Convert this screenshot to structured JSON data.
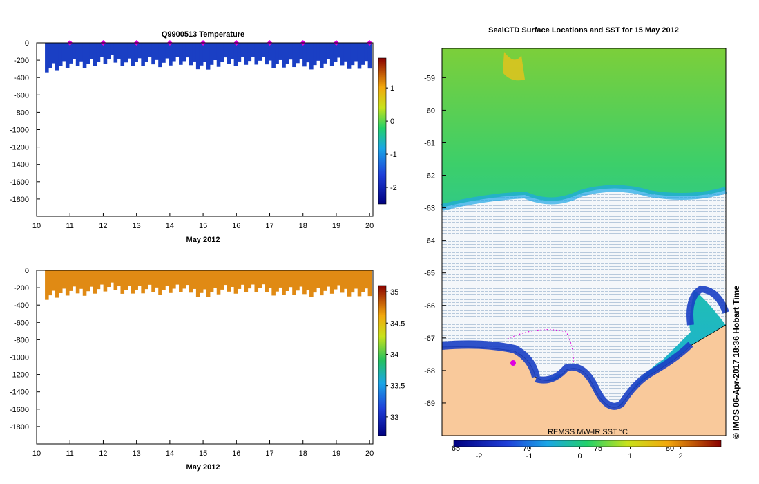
{
  "chart_data": [
    {
      "type": "heatmap",
      "title": "Q9900513  Temperature",
      "xlabel": "May 2012",
      "ylabel": "",
      "x_ticks": [
        "10",
        "11",
        "12",
        "13",
        "14",
        "15",
        "16",
        "17",
        "18",
        "19",
        "20"
      ],
      "y_ticks": [
        "0",
        "-200",
        "-400",
        "-600",
        "-800",
        "-1000",
        "-1200",
        "-1400",
        "-1600",
        "-1800"
      ],
      "xlim": [
        10,
        20.1
      ],
      "ylim": [
        -2000,
        0
      ],
      "profile_markers_day": [
        11,
        12,
        13,
        14,
        15,
        16,
        17,
        18,
        19,
        20
      ],
      "profile_bottom_depth_m": [
        -280,
        -240,
        -200,
        -230,
        -210,
        -260,
        -200,
        -230,
        -250,
        -230,
        -260
      ],
      "colorbar": {
        "ticks": [
          "1",
          "0",
          "-1",
          "-2"
        ],
        "range": [
          -2.5,
          1.9
        ]
      },
      "dominant_value": -1.8
    },
    {
      "type": "heatmap",
      "title": "",
      "xlabel": "May 2012",
      "ylabel": "",
      "x_ticks": [
        "10",
        "11",
        "12",
        "13",
        "14",
        "15",
        "16",
        "17",
        "18",
        "19",
        "20"
      ],
      "y_ticks": [
        "0",
        "-200",
        "-400",
        "-600",
        "-800",
        "-1000",
        "-1200",
        "-1400",
        "-1600",
        "-1800"
      ],
      "xlim": [
        10,
        20.1
      ],
      "ylim": [
        -2000,
        0
      ],
      "profile_bottom_depth_m": [
        -280,
        -240,
        -200,
        -230,
        -210,
        -260,
        -200,
        -230,
        -250,
        -230,
        -260
      ],
      "colorbar": {
        "ticks": [
          "35",
          "34.5",
          "34",
          "33.5",
          "33"
        ],
        "range": [
          32.7,
          35.1
        ]
      },
      "dominant_value": 34.6
    },
    {
      "type": "heatmap",
      "title": "SealCTD Surface Locations and SST for 15 May 2012",
      "xlabel": "",
      "ylabel": "",
      "y_ticks": [
        "-59",
        "-60",
        "-61",
        "-62",
        "-63",
        "-64",
        "-65",
        "-66",
        "-67",
        "-68",
        "-69"
      ],
      "ylim": [
        -70,
        -58.1
      ],
      "lon_labels": [
        "65",
        "70",
        "75",
        "80"
      ],
      "annotation": "REMSS MW-IR SST °C",
      "colorbar": {
        "ticks": [
          "-2",
          "-1",
          "0",
          "1",
          "2"
        ],
        "range": [
          -2.5,
          2.8
        ]
      },
      "side_text": "© IMOS 06-Apr-2017 18:36 Hobart Time"
    }
  ],
  "colors": {
    "temp_fill": "#1a3fc4",
    "sal_fill": "#e08a14",
    "marker": "#e000e0",
    "ice": "#e8eef4",
    "land": "#f9c99b"
  }
}
